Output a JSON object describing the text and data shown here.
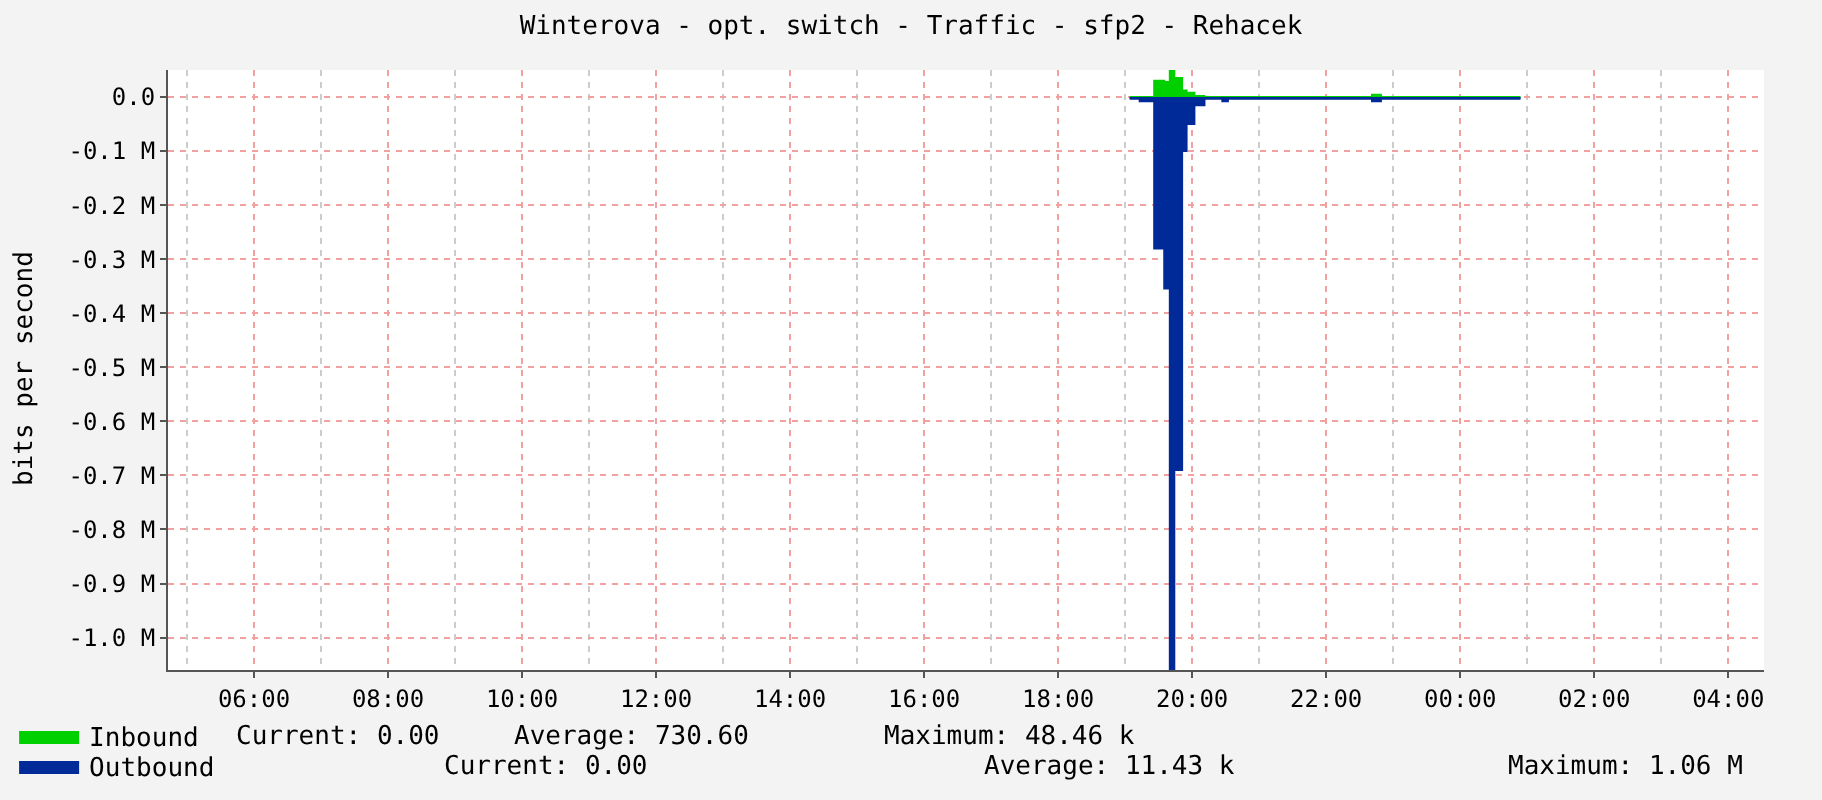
{
  "chart_data": {
    "type": "area",
    "title": "Winterova - opt. switch - Traffic - sfp2 - Rehacek",
    "ylabel": "bits per second",
    "x": [
      "--01-01T19:04",
      "--01-01T19:13",
      "--01-01T19:26",
      "--01-01T19:35",
      "--01-01T19:40",
      "--01-01T19:44",
      "--01-01T19:51",
      "--01-01T19:55",
      "--01-01T19:58",
      "--01-01T20:02",
      "--01-01T20:11",
      "--01-01T20:27",
      "--01-01T20:32",
      "--01-01T22:41",
      "--01-01T22:49",
      "--01-02T00:54"
    ],
    "series": [
      {
        "name": "Inbound",
        "color": "#00cf00",
        "values": [
          0,
          0,
          30000,
          28000,
          48000,
          35000,
          12000,
          8000,
          8000,
          2000,
          0,
          0,
          0,
          4000,
          0,
          0
        ]
      },
      {
        "name": "Outbound",
        "color": "#002a97",
        "values": [
          -3000,
          -8000,
          -280000,
          -354000,
          -1060000,
          -690000,
          -100000,
          -50000,
          -50000,
          -15000,
          -3000,
          -8000,
          -3000,
          -8000,
          -3000,
          -3000
        ]
      }
    ],
    "xlim": [
      "--01-01T04:43",
      "--01-02T04:32"
    ],
    "xticks": [
      {
        "value": "--01-01T06:00",
        "label": "06:00"
      },
      {
        "value": "--01-01T08:00",
        "label": "08:00"
      },
      {
        "value": "--01-01T10:00",
        "label": "10:00"
      },
      {
        "value": "--01-01T12:00",
        "label": "12:00"
      },
      {
        "value": "--01-01T14:00",
        "label": "14:00"
      },
      {
        "value": "--01-01T16:00",
        "label": "16:00"
      },
      {
        "value": "--01-01T18:00",
        "label": "18:00"
      },
      {
        "value": "--01-01T20:00",
        "label": "20:00"
      },
      {
        "value": "--01-01T22:00",
        "label": "22:00"
      },
      {
        "value": "--01-02T00:00",
        "label": "00:00"
      },
      {
        "value": "--01-02T02:00",
        "label": "02:00"
      },
      {
        "value": "--01-02T04:00",
        "label": "04:00"
      }
    ],
    "ylim": [
      -1060000,
      50000
    ],
    "yticks": [
      {
        "value": 0,
        "label": "0.0"
      },
      {
        "value": -100000,
        "label": "-0.1 M"
      },
      {
        "value": -200000,
        "label": "-0.2 M"
      },
      {
        "value": -300000,
        "label": "-0.3 M"
      },
      {
        "value": -400000,
        "label": "-0.4 M"
      },
      {
        "value": -500000,
        "label": "-0.5 M"
      },
      {
        "value": -600000,
        "label": "-0.6 M"
      },
      {
        "value": -700000,
        "label": "-0.7 M"
      },
      {
        "value": -800000,
        "label": "-0.8 M"
      },
      {
        "value": -900000,
        "label": "-0.9 M"
      },
      {
        "value": -1000000,
        "label": "-1.0 M"
      }
    ],
    "grid": true,
    "legend": "bottom left",
    "line_style": "solid",
    "annotations": [
      "Current: 0.00",
      "Average: 730.60",
      "Maximum: 48.46 k",
      "Current: 0.00",
      "Average: 11.43 k",
      "Maximum: 1.06 M"
    ]
  }
}
